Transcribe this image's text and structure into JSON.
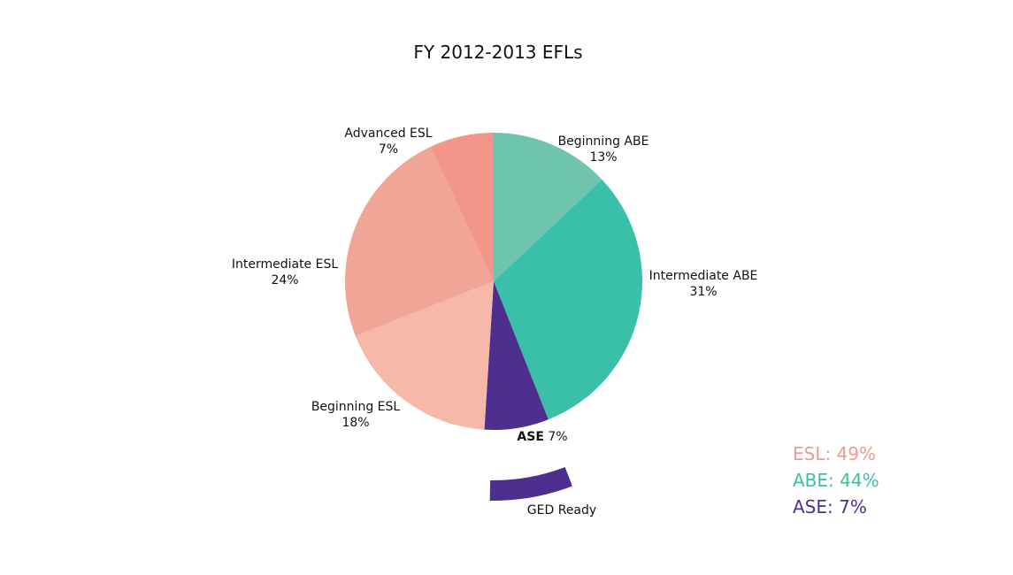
{
  "chart_data": {
    "type": "pie",
    "title": "FY 2012-2013 EFLs",
    "slices": [
      {
        "label": "Beginning ABE",
        "pct_label": "13%",
        "value": 13,
        "color": "#6fc4ad"
      },
      {
        "label": "Intermediate ABE",
        "pct_label": "31%",
        "value": 31,
        "color": "#3abfa8"
      },
      {
        "label": "ASE",
        "pct_label": "7%",
        "value": 7,
        "color": "#4e2e8e"
      },
      {
        "label": "Beginning ESL",
        "pct_label": "18%",
        "value": 18,
        "color": "#f6b8a8"
      },
      {
        "label": "Intermediate ESL",
        "pct_label": "24%",
        "value": 24,
        "color": "#f0a597"
      },
      {
        "label": "Advanced ESL",
        "pct_label": "7%",
        "value": 7,
        "color": "#f3958a"
      }
    ],
    "callout": {
      "label": "GED Ready",
      "color": "#4e2e8e"
    },
    "summary": [
      {
        "text": "ESL: 49%",
        "color": "#f09a8f"
      },
      {
        "text": "ABE: 44%",
        "color": "#3abfa8"
      },
      {
        "text": "ASE: 7%",
        "color": "#4e2e8e"
      }
    ]
  }
}
